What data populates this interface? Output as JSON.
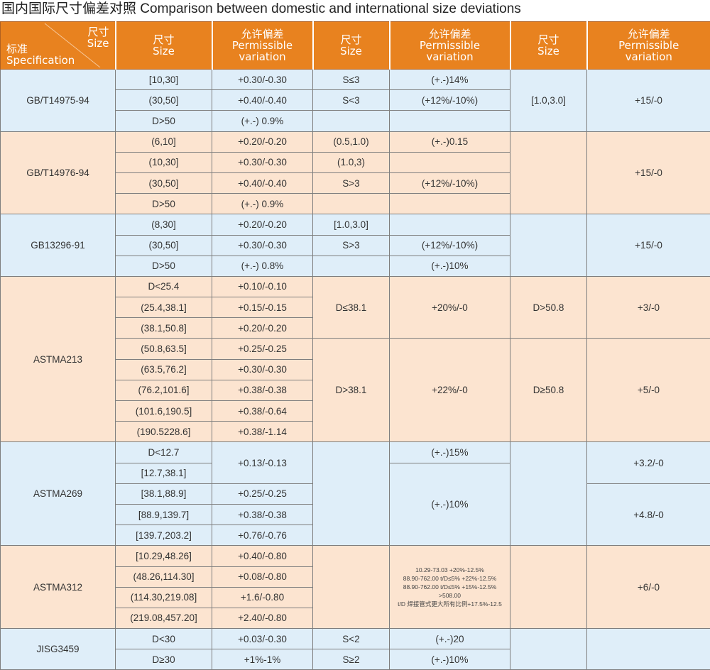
{
  "title": "国内国际尺寸偏差对照 Comparison between domestic and international size deviations",
  "colors": {
    "header": "#e8821f",
    "row_blue": "#dfeef9",
    "row_peach": "#fce4d0"
  },
  "header": {
    "corner_top_cn": "尺寸",
    "corner_top_en": "Size",
    "corner_bottom_cn": "标准",
    "corner_bottom_en": "Specification",
    "size_cn": "尺寸",
    "size_en": "Size",
    "var_cn": "允许偏差",
    "var_en1": "Permissible",
    "var_en2": "variation"
  },
  "groups": [
    {
      "spec": "GB/T14975-94",
      "tone": "blue",
      "rows": [
        [
          "[10,30]",
          "+0.30/-0.30",
          "S≤3",
          "(+.-)14%",
          {
            "text": "[1.0,3.0]",
            "rowspan": 3
          },
          {
            "text": "+15/-0",
            "rowspan": 3
          }
        ],
        [
          "(30,50]",
          "+0.40/-0.40",
          "S<3",
          "(+12%/-10%)"
        ],
        [
          "D>50",
          "(+.-) 0.9%",
          "",
          ""
        ]
      ]
    },
    {
      "spec": "GB/T14976-94",
      "tone": "peach",
      "rows": [
        [
          "(6,10]",
          "+0.20/-0.20",
          "(0.5,1.0)",
          "(+.-)0.15",
          {
            "text": "",
            "rowspan": 4
          },
          {
            "text": "+15/-0",
            "rowspan": 4
          }
        ],
        [
          "(10,30]",
          "+0.30/-0.30",
          "(1.0,3)",
          ""
        ],
        [
          "(30,50]",
          "+0.40/-0.40",
          "S>3",
          "(+12%/-10%)"
        ],
        [
          "D>50",
          "(+.-) 0.9%",
          "",
          ""
        ]
      ]
    },
    {
      "spec": "GB13296-91",
      "tone": "blue",
      "rows": [
        [
          "(8,30]",
          "+0.20/-0.20",
          "[1.0,3.0]",
          "",
          {
            "text": "",
            "rowspan": 3
          },
          {
            "text": "+15/-0",
            "rowspan": 3
          }
        ],
        [
          "(30,50]",
          "+0.30/-0.30",
          "S>3",
          "(+12%/-10%)"
        ],
        [
          "D>50",
          "(+.-) 0.8%",
          "",
          "(+.-)10%"
        ]
      ]
    },
    {
      "spec": "ASTMA213",
      "tone": "peach",
      "rows": [
        [
          "D<25.4",
          "+0.10/-0.10",
          {
            "text": "D≤38.1",
            "rowspan": 3
          },
          {
            "text": "+20%/-0",
            "rowspan": 3
          },
          {
            "text": "D>50.8",
            "rowspan": 3
          },
          {
            "text": "+3/-0",
            "rowspan": 3
          }
        ],
        [
          "(25.4,38.1]",
          "+0.15/-0.15"
        ],
        [
          "(38.1,50.8]",
          "+0.20/-0.20"
        ],
        [
          "(50.8,63.5]",
          "+0.25/-0.25",
          {
            "text": "D>38.1",
            "rowspan": 5
          },
          {
            "text": "+22%/-0",
            "rowspan": 5
          },
          {
            "text": "D≥50.8",
            "rowspan": 5
          },
          {
            "text": "+5/-0",
            "rowspan": 5
          }
        ],
        [
          "(63.5,76.2]",
          "+0.30/-0.30"
        ],
        [
          "(76.2,101.6]",
          "+0.38/-0.38"
        ],
        [
          "(101.6,190.5]",
          "+0.38/-0.64"
        ],
        [
          "(190.5228.6]",
          "+0.38/-1.14"
        ]
      ]
    },
    {
      "spec": "ASTMA269",
      "tone": "blue",
      "rows": [
        [
          "D<12.7",
          {
            "text": "+0.13/-0.13",
            "rowspan": 2
          },
          {
            "text": "",
            "rowspan": 5
          },
          "(+.-)15%",
          {
            "text": "",
            "rowspan": 5
          },
          {
            "text": "+3.2/-0",
            "rowspan": 2
          }
        ],
        [
          "[12.7,38.1]",
          {
            "text": "(+.-)10%",
            "rowspan": 4
          }
        ],
        [
          "[38.1,88.9]",
          "+0.25/-0.25",
          {
            "text": "+4.8/-0",
            "rowspan": 3
          }
        ],
        [
          "[88.9,139.7]",
          "+0.38/-0.38"
        ],
        [
          "[139.7,203.2]",
          "+0.76/-0.76"
        ]
      ]
    },
    {
      "spec": "ASTMA312",
      "tone": "peach",
      "rows": [
        [
          "[10.29,48.26]",
          "+0.40/-0.80",
          {
            "text": "",
            "rowspan": 4
          },
          {
            "lines": [
              "10.29-73.03  +20%-12.5%",
              "88.90-762.00  t/D≤5%  +22%-12.5%",
              "88.90-762.00  t/D≤5%  +15%-12.5%",
              ">508.00",
              "t/D  焊接管式更大所有比例+17.5%-12.5"
            ],
            "rowspan": 4
          },
          {
            "text": "",
            "rowspan": 4
          },
          {
            "text": "+6/-0",
            "rowspan": 4
          }
        ],
        [
          "(48.26,114.30]",
          "+0.08/-0.80"
        ],
        [
          "(114.30,219.08]",
          "+1.6/-0.80"
        ],
        [
          "(219.08,457.20]",
          "+2.40/-0.80"
        ]
      ]
    },
    {
      "spec": "JISG3459",
      "tone": "blue",
      "rows": [
        [
          "D<30",
          "+0.03/-0.30",
          "S<2",
          "(+.-)20",
          {
            "text": "",
            "rowspan": 2
          },
          {
            "text": "",
            "rowspan": 2
          }
        ],
        [
          "D≥30",
          "+1%-1%",
          "S≥2",
          "(+.-)10%"
        ]
      ]
    }
  ]
}
